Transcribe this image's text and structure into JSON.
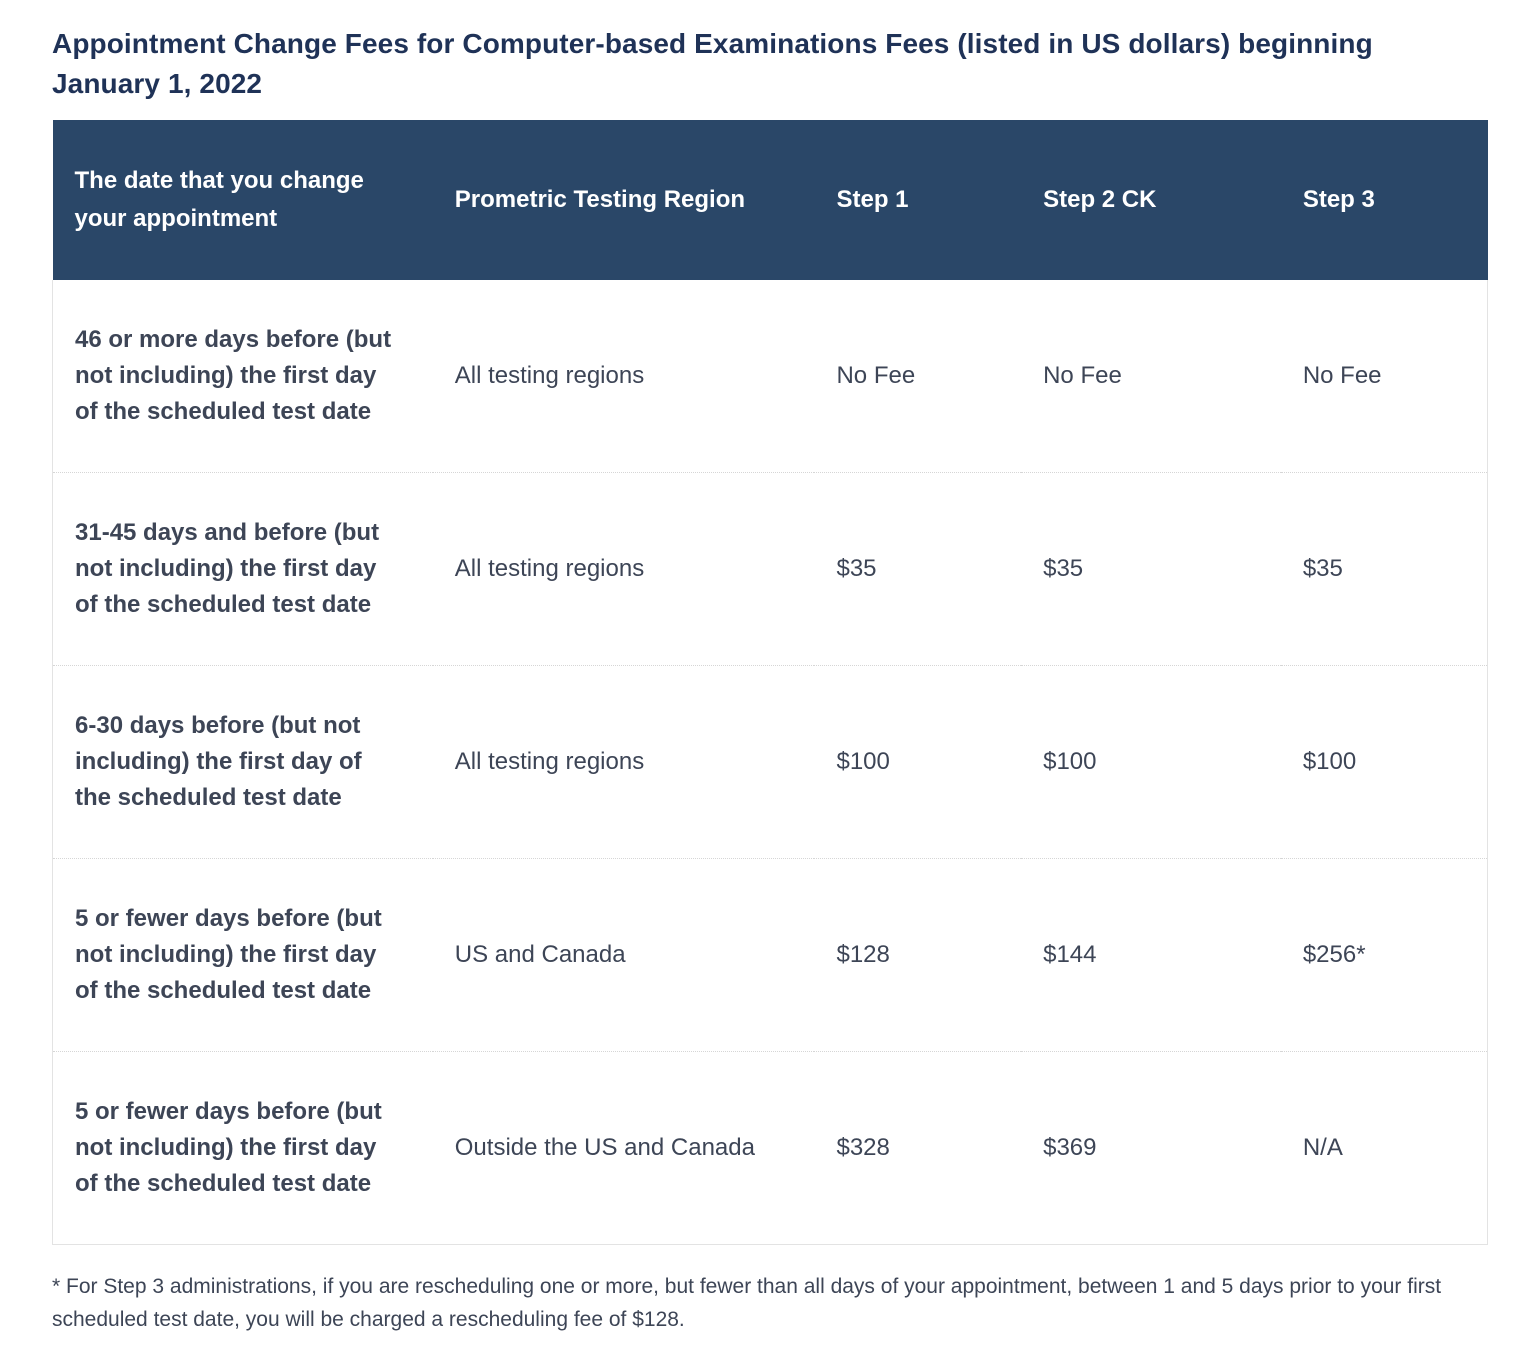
{
  "page": {
    "title": "Appointment Change Fees for Computer-based Examinations Fees (listed in US dollars) beginning January 1, 2022"
  },
  "table": {
    "columns": [
      "The date that you change your appointment",
      "Prometric Testing Region",
      "Step 1",
      "Step 2 CK",
      "Step 3"
    ],
    "rows": [
      {
        "date": "46 or more days before (but not including) the first day of the scheduled test date",
        "region": "All testing regions",
        "step1": "No Fee",
        "step2ck": "No Fee",
        "step3": "No Fee"
      },
      {
        "date": "31-45 days and before (but not including) the first day of the scheduled test date",
        "region": "All testing regions",
        "step1": "$35",
        "step2ck": "$35",
        "step3": "$35"
      },
      {
        "date": "6-30 days before (but not including) the first day of the scheduled test date",
        "region": "All testing regions",
        "step1": "$100",
        "step2ck": "$100",
        "step3": "$100"
      },
      {
        "date": "5 or fewer days before (but not including) the first day of the scheduled test date",
        "region": "US and Canada",
        "step1": "$128",
        "step2ck": "$144",
        "step3": "$256*"
      },
      {
        "date": "5 or fewer days before (but not including) the first day of the scheduled test date",
        "region": "Outside the US and Canada",
        "step1": "$328",
        "step2ck": "$369",
        "step3": "N/A"
      }
    ]
  },
  "footnote": "* For Step 3 administrations, if you are rescheduling one or more, but fewer than all days of your appointment, between 1 and 5 days prior to your first scheduled test date, you will be charged a rescheduling fee of $128.",
  "colors": {
    "header_bg": "#2a4768",
    "header_text": "#ffffff",
    "title_text": "#1f3257",
    "body_text": "#3d4556",
    "border": "#e3e3e3"
  }
}
